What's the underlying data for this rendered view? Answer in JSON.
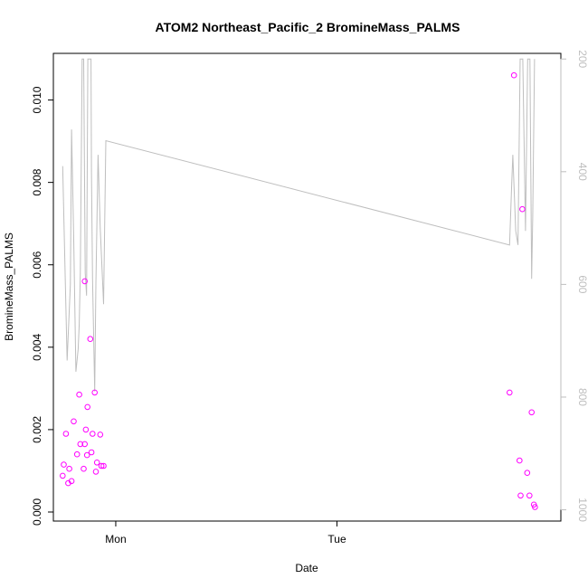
{
  "chart_data": {
    "type": "scatter",
    "title": "ATOM2 Northeast_Pacific_2 BromineMass_PALMS",
    "xlabel": "Date",
    "ylabel": "BromineMass_PALMS",
    "x_ticks": [
      {
        "label": "Mon",
        "value": 1.0
      },
      {
        "label": "Tue",
        "value": 2.0
      }
    ],
    "xlim": [
      0.718,
      3.012
    ],
    "ylim": [
      0,
      0.011
    ],
    "y_ticks": [
      "0.000",
      "0.002",
      "0.004",
      "0.006",
      "0.008",
      "0.010"
    ],
    "y_right_ticks": [
      "200",
      "400",
      "600",
      "800",
      "1000"
    ],
    "y_right_lim": [
      1020,
      190
    ],
    "grid": false,
    "colors": {
      "points": "#ff00ff",
      "line": "#bebebe",
      "axes": "#000000",
      "right_axis": "#bebebe"
    },
    "series": [
      {
        "type": "scatter",
        "axis": "left",
        "points": [
          [
            0.76,
            0.00088
          ],
          [
            0.765,
            0.00115
          ],
          [
            0.775,
            0.0019
          ],
          [
            0.785,
            0.0007
          ],
          [
            0.79,
            0.00105
          ],
          [
            0.8,
            0.00075
          ],
          [
            0.81,
            0.0022
          ],
          [
            0.825,
            0.0014
          ],
          [
            0.835,
            0.00285
          ],
          [
            0.84,
            0.00165
          ],
          [
            0.855,
            0.00105
          ],
          [
            0.86,
            0.0056
          ],
          [
            0.86,
            0.00165
          ],
          [
            0.865,
            0.002
          ],
          [
            0.87,
            0.00138
          ],
          [
            0.872,
            0.00255
          ],
          [
            0.885,
            0.0042
          ],
          [
            0.89,
            0.00145
          ],
          [
            0.895,
            0.0019
          ],
          [
            0.905,
            0.0029
          ],
          [
            0.91,
            0.00098
          ],
          [
            0.915,
            0.0012
          ],
          [
            0.93,
            0.00188
          ],
          [
            0.935,
            0.00112
          ],
          [
            0.945,
            0.00112
          ],
          [
            2.78,
            0.0029
          ],
          [
            2.8,
            0.0106
          ],
          [
            2.825,
            0.00125
          ],
          [
            2.83,
            0.0004
          ],
          [
            2.838,
            0.00735
          ],
          [
            2.86,
            0.00095
          ],
          [
            2.87,
            0.0004
          ],
          [
            2.88,
            0.00242
          ],
          [
            2.89,
            0.00018
          ],
          [
            2.895,
            0.00012
          ]
        ]
      },
      {
        "type": "line",
        "axis": "right",
        "points": [
          [
            0.76,
            390
          ],
          [
            0.77,
            560
          ],
          [
            0.78,
            735
          ],
          [
            0.795,
            600
          ],
          [
            0.8,
            325
          ],
          [
            0.81,
            520
          ],
          [
            0.82,
            755
          ],
          [
            0.83,
            715
          ],
          [
            0.835,
            670
          ],
          [
            0.84,
            580
          ],
          [
            0.848,
            200
          ],
          [
            0.855,
            200
          ],
          [
            0.862,
            580
          ],
          [
            0.868,
            620
          ],
          [
            0.874,
            200
          ],
          [
            0.888,
            200
          ],
          [
            0.89,
            400
          ],
          [
            0.895,
            590
          ],
          [
            0.905,
            790
          ],
          [
            0.91,
            600
          ],
          [
            0.92,
            370
          ],
          [
            0.93,
            500
          ],
          [
            0.945,
            635
          ],
          [
            0.955,
            345
          ],
          [
            2.78,
            530
          ],
          [
            2.79,
            420
          ],
          [
            2.795,
            370
          ],
          [
            2.808,
            505
          ],
          [
            2.818,
            530
          ],
          [
            2.828,
            200
          ],
          [
            2.84,
            200
          ],
          [
            2.852,
            505
          ],
          [
            2.862,
            200
          ],
          [
            2.872,
            200
          ],
          [
            2.88,
            590
          ],
          [
            2.885,
            480
          ],
          [
            2.893,
            200
          ]
        ]
      }
    ]
  }
}
